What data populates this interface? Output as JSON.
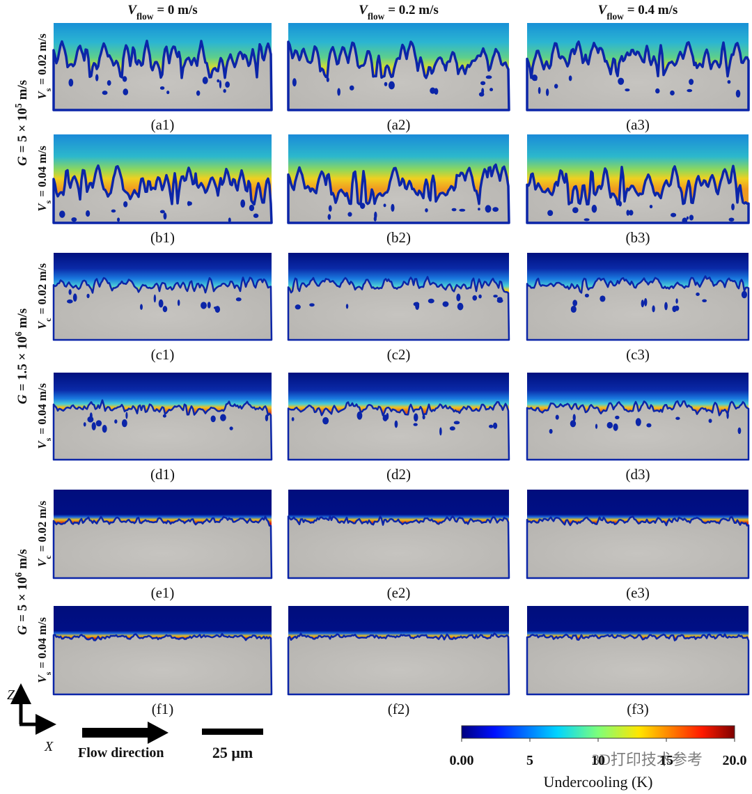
{
  "columns": [
    {
      "symbol": "V",
      "subscript": "flow",
      "rest": "= 0 m/s"
    },
    {
      "symbol": "V",
      "subscript": "flow",
      "rest": "= 0.2 m/s"
    },
    {
      "symbol": "V",
      "subscript": "flow",
      "rest": "= 0.4 m/s"
    }
  ],
  "groups": [
    {
      "label": {
        "symbol": "G",
        "text": "= 5 × 10",
        "superscript": "5",
        "unit": "m/s"
      },
      "rows": [
        {
          "symbol": "V",
          "subscript": "s",
          "rest": "= 0.02 m/s",
          "panels": [
            "(a1)",
            "(a2)",
            "(a3)"
          ]
        },
        {
          "symbol": "V",
          "subscript": "s",
          "rest": "= 0.04 m/s",
          "panels": [
            "(b1)",
            "(b2)",
            "(b3)"
          ]
        }
      ]
    },
    {
      "label": {
        "symbol": "G",
        "text": "= 1.5 × 10",
        "superscript": "6",
        "unit": "m/s"
      },
      "rows": [
        {
          "symbol": "V",
          "subscript": "c",
          "rest": "= 0.02 m/s",
          "panels": [
            "(c1)",
            "(c2)",
            "(c3)"
          ]
        },
        {
          "symbol": "V",
          "subscript": "s",
          "rest": "= 0.04 m/s",
          "panels": [
            "(d1)",
            "(d2)",
            "(d3)"
          ]
        }
      ]
    },
    {
      "label": {
        "symbol": "G",
        "text": "= 5 × 10",
        "superscript": "6",
        "unit": "m/s"
      },
      "rows": [
        {
          "symbol": "V",
          "subscript": "c",
          "rest": "= 0.02 m/s",
          "panels": [
            "(e1)",
            "(e2)",
            "(e3)"
          ]
        },
        {
          "symbol": "V",
          "subscript": "s",
          "rest": "= 0.04 m/s",
          "panels": [
            "(f1)",
            "(f2)",
            "(f3)"
          ]
        }
      ]
    }
  ],
  "axes": {
    "z": "Z",
    "x": "X"
  },
  "flow_label": "Flow direction",
  "scale_bar": "25 μm",
  "colorbar": {
    "title": "Undercooling (K)",
    "lim": [
      0,
      20
    ],
    "ticks": [
      {
        "value": 0,
        "label": "0.00"
      },
      5,
      10,
      15,
      {
        "value": 20,
        "label": "20.0"
      }
    ]
  },
  "watermark": "3D打印技术参考"
}
